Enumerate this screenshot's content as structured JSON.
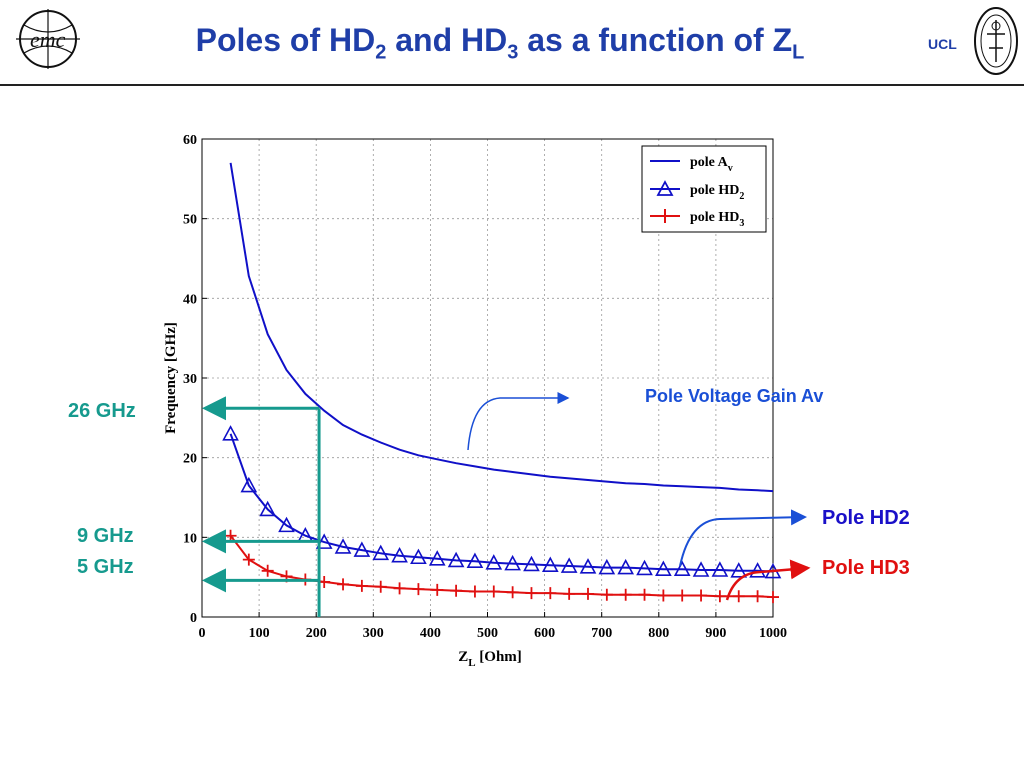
{
  "slide": {
    "title_main": "Poles of HD",
    "title_sub1": "2",
    "title_mid": " and HD",
    "title_sub2": "3",
    "title_end": " as a function of Z",
    "title_sub3": "L",
    "institution": "UCL"
  },
  "logos": {
    "left": "emc-logo",
    "right": "ucl-seal-logo"
  },
  "annotations": {
    "ghz26": "26 GHz",
    "ghz9": "9 GHz",
    "ghz5": "5 GHz",
    "pole_av": "Pole Voltage Gain Av",
    "pole_hd2": "Pole HD2",
    "pole_hd3": "Pole HD3"
  },
  "colors": {
    "title": "#1f3ea8",
    "series_blue": "#1010c8",
    "series_red": "#e01010",
    "guide_teal": "#169a8e",
    "ann_blue": "#1a4fd6",
    "ann_red": "#e01010"
  },
  "chart_data": {
    "type": "line",
    "xlabel_main": "Z",
    "xlabel_sub": "L",
    "xlabel_unit": " [Ohm]",
    "ylabel": "Frequency [GHz]",
    "xlim": [
      0,
      1000
    ],
    "ylim": [
      0,
      60
    ],
    "xticks": [
      0,
      100,
      200,
      300,
      400,
      500,
      600,
      700,
      800,
      900,
      1000
    ],
    "yticks": [
      0,
      10,
      20,
      30,
      40,
      50,
      60
    ],
    "grid": true,
    "legend_position": "top-right",
    "series": [
      {
        "name": "pole A",
        "name_sub": "v",
        "marker": "none",
        "color": "#1010c8",
        "x": [
          50,
          82,
          115,
          148,
          181,
          214,
          247,
          280,
          313,
          346,
          379,
          412,
          445,
          478,
          511,
          544,
          577,
          610,
          643,
          676,
          709,
          742,
          775,
          808,
          841,
          874,
          907,
          940,
          973,
          1000
        ],
        "y": [
          57,
          42.8,
          35.5,
          31,
          28,
          25.9,
          24.1,
          22.9,
          21.9,
          21.0,
          20.3,
          19.8,
          19.3,
          18.9,
          18.5,
          18.2,
          17.9,
          17.6,
          17.4,
          17.2,
          17.0,
          16.8,
          16.7,
          16.5,
          16.4,
          16.3,
          16.2,
          16.0,
          15.9,
          15.8
        ]
      },
      {
        "name": "pole HD",
        "name_sub": "2",
        "marker": "triangle",
        "color": "#1010c8",
        "x": [
          50,
          82,
          115,
          148,
          181,
          214,
          247,
          280,
          313,
          346,
          379,
          412,
          445,
          478,
          511,
          544,
          577,
          610,
          643,
          676,
          709,
          742,
          775,
          808,
          841,
          874,
          907,
          940,
          973,
          1000
        ],
        "y": [
          23,
          16.5,
          13.5,
          11.5,
          10.2,
          9.4,
          8.8,
          8.4,
          8.0,
          7.7,
          7.5,
          7.3,
          7.1,
          7.0,
          6.8,
          6.7,
          6.6,
          6.5,
          6.4,
          6.3,
          6.2,
          6.2,
          6.1,
          6.0,
          6.0,
          5.9,
          5.9,
          5.8,
          5.8,
          5.7
        ]
      },
      {
        "name": "pole HD",
        "name_sub": "3",
        "marker": "plus",
        "color": "#e01010",
        "x": [
          50,
          82,
          115,
          148,
          181,
          214,
          247,
          280,
          313,
          346,
          379,
          412,
          445,
          478,
          511,
          544,
          577,
          610,
          643,
          676,
          709,
          742,
          775,
          808,
          841,
          874,
          907,
          940,
          973,
          1000
        ],
        "y": [
          10.2,
          7.2,
          5.8,
          5.1,
          4.7,
          4.4,
          4.1,
          3.9,
          3.8,
          3.6,
          3.5,
          3.4,
          3.3,
          3.2,
          3.2,
          3.1,
          3.0,
          3.0,
          2.9,
          2.9,
          2.8,
          2.8,
          2.8,
          2.7,
          2.7,
          2.7,
          2.6,
          2.6,
          2.6,
          2.5
        ]
      }
    ],
    "guides": [
      {
        "label_key": "ghz26",
        "x": 205,
        "y": 26.2
      },
      {
        "label_key": "ghz9",
        "x": 205,
        "y": 9.5
      },
      {
        "label_key": "ghz5",
        "x": 205,
        "y": 4.6
      }
    ]
  }
}
